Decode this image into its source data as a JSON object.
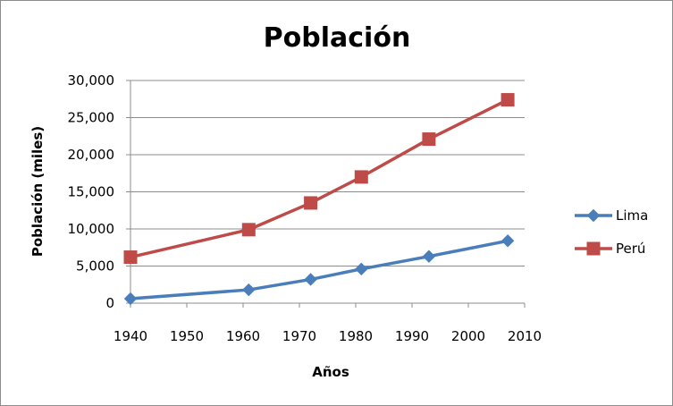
{
  "chart_data": {
    "type": "line",
    "title": "Población",
    "xlabel": "Años",
    "ylabel": "Población (miles)",
    "xlim": [
      1940,
      2010
    ],
    "ylim": [
      0,
      30000
    ],
    "x_ticks": [
      "1940",
      "1950",
      "1960",
      "1970",
      "1980",
      "1990",
      "2000",
      "2010"
    ],
    "y_ticks": [
      "0",
      "5,000",
      "10,000",
      "15,000",
      "20,000",
      "25,000",
      "30,000"
    ],
    "grid": true,
    "legend_position": "right",
    "series": [
      {
        "name": "Lima",
        "color": "#4a7ebb",
        "marker": "diamond",
        "x": [
          1940,
          1961,
          1972,
          1981,
          1993,
          2007
        ],
        "values": [
          600,
          1800,
          3200,
          4600,
          6300,
          8400
        ]
      },
      {
        "name": "Perú",
        "color": "#be4b48",
        "marker": "square",
        "x": [
          1940,
          1961,
          1972,
          1981,
          1993,
          2007
        ],
        "values": [
          6200,
          9900,
          13500,
          17000,
          22100,
          27400
        ]
      }
    ]
  }
}
